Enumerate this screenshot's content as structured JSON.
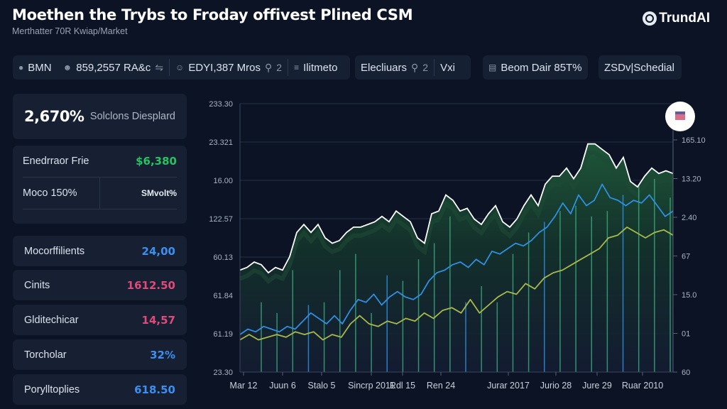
{
  "header": {
    "title": "Moethen the Trybs to Froday offivest Plined CSM",
    "subtitle": "Merthatter 70R Kwiap/Market",
    "brand": "TrundAI",
    "brand_icon": "globe-logo-icon"
  },
  "toolbar": {
    "groups": [
      {
        "items": [
          {
            "icon": "tag-icon",
            "label": "BMN"
          },
          {
            "icon": "people-icon",
            "label": "859,2557 RA&c",
            "suffix_icon": "toggle-icon"
          },
          {
            "icon": "user-icon",
            "label": "EDYI,387 Mros",
            "suffix": "2",
            "suffix_icon": "lock-icon"
          },
          {
            "icon": "filter-icon",
            "label": "Ilitmeto"
          }
        ]
      },
      {
        "items": [
          {
            "label": "Elecliuars",
            "suffix": "2",
            "suffix_icon": "lock-icon"
          },
          {
            "label": "Vxi"
          }
        ]
      },
      {
        "items": [
          {
            "icon": "card-icon",
            "label": "Beom Dair 85T%"
          }
        ]
      },
      {
        "items": [
          {
            "label": "ZSDv|Schedial"
          }
        ]
      }
    ]
  },
  "sidebar": {
    "summary": {
      "value": "2,670%",
      "label": "Solclons Diesplard"
    },
    "detail": {
      "row1": {
        "label": "Enedrraor Frie",
        "value": "$6,380",
        "color": "#22c55e"
      },
      "row2": {
        "label": "Moco 150%",
        "value": "SMvolt%"
      }
    },
    "metrics": [
      {
        "label": "Mocorffilients",
        "value": "24,00",
        "color": "#3b8ff0"
      },
      {
        "label": "Cinits",
        "value": "1612.50",
        "color": "#e04a7a"
      },
      {
        "label": "Glditechicar",
        "value": "14,57",
        "color": "#e04a7a"
      },
      {
        "label": "Torcholar",
        "value": "32%",
        "color": "#3b8ff0"
      },
      {
        "label": "Porylltoplies",
        "value": "618.50",
        "color": "#3b8ff0"
      }
    ]
  },
  "chart_data": {
    "type": "line",
    "title": "",
    "xlabel": "",
    "ylabel": "",
    "grid": true,
    "legend": "none",
    "y_left_ticks": [
      "23.30",
      "61.19",
      "61.84",
      "60.13",
      "122.57",
      "16.00",
      "23.321",
      "233.30"
    ],
    "y_right_ticks": [
      "60",
      "01",
      "15.0",
      "67",
      "2.40",
      "13.20",
      "165.10"
    ],
    "x_ticks": [
      "Mar 12",
      "Juun 6",
      "Stalo 5",
      "Sincrp 2011",
      "Rdl 15",
      "Ren 24",
      "Jurar 2017",
      "Jurio 28",
      "Jure 29",
      "Ruar 2010"
    ],
    "ylim": [
      0,
      100
    ],
    "series": [
      {
        "name": "price-area",
        "style": "area",
        "color": "#ffffff",
        "fill": "#1f5a3a",
        "values": [
          38,
          39,
          41,
          40,
          37,
          39,
          38,
          43,
          52,
          55,
          52,
          55,
          50,
          48,
          49,
          52,
          54,
          54,
          55,
          56,
          58,
          56,
          60,
          58,
          56,
          50,
          48,
          59,
          60,
          66,
          64,
          60,
          61,
          57,
          55,
          59,
          62,
          56,
          54,
          57,
          62,
          66,
          62,
          70,
          73,
          73,
          76,
          72,
          76,
          85,
          85,
          83,
          81,
          76,
          80,
          71,
          69,
          73,
          76,
          74,
          75,
          74
        ]
      },
      {
        "name": "blue-line",
        "style": "line",
        "color": "#2f8fe0",
        "values": [
          14,
          16,
          15,
          17,
          16,
          15,
          17,
          16,
          19,
          22,
          20,
          18,
          21,
          18,
          23,
          27,
          26,
          29,
          25,
          28,
          30,
          28,
          27,
          29,
          34,
          37,
          38,
          40,
          41,
          39,
          42,
          40,
          45,
          44,
          46,
          48,
          47,
          49,
          52,
          54,
          58,
          63,
          59,
          66,
          62,
          64,
          70,
          65,
          64,
          62,
          64,
          63,
          66,
          62,
          58,
          60
        ]
      },
      {
        "name": "olive-line",
        "style": "line",
        "color": "#a8b94a",
        "values": [
          12,
          14,
          12,
          13,
          14,
          13,
          15,
          14,
          15,
          12,
          14,
          13,
          18,
          21,
          18,
          17,
          19,
          18,
          20,
          19,
          22,
          20,
          23,
          24,
          22,
          27,
          22,
          25,
          28,
          30,
          29,
          33,
          31,
          35,
          37,
          38,
          40,
          42,
          44,
          46,
          50,
          51,
          54,
          52,
          50,
          52,
          53,
          51
        ]
      },
      {
        "name": "volume-bars",
        "style": "bar",
        "color": "#3aa57a",
        "values": [
          26,
          22,
          38,
          25,
          26,
          38,
          44,
          22,
          36,
          34,
          42,
          48,
          58,
          26,
          32,
          26,
          44,
          52,
          56,
          60,
          62,
          58,
          60,
          66,
          70,
          72,
          65
        ]
      }
    ]
  }
}
